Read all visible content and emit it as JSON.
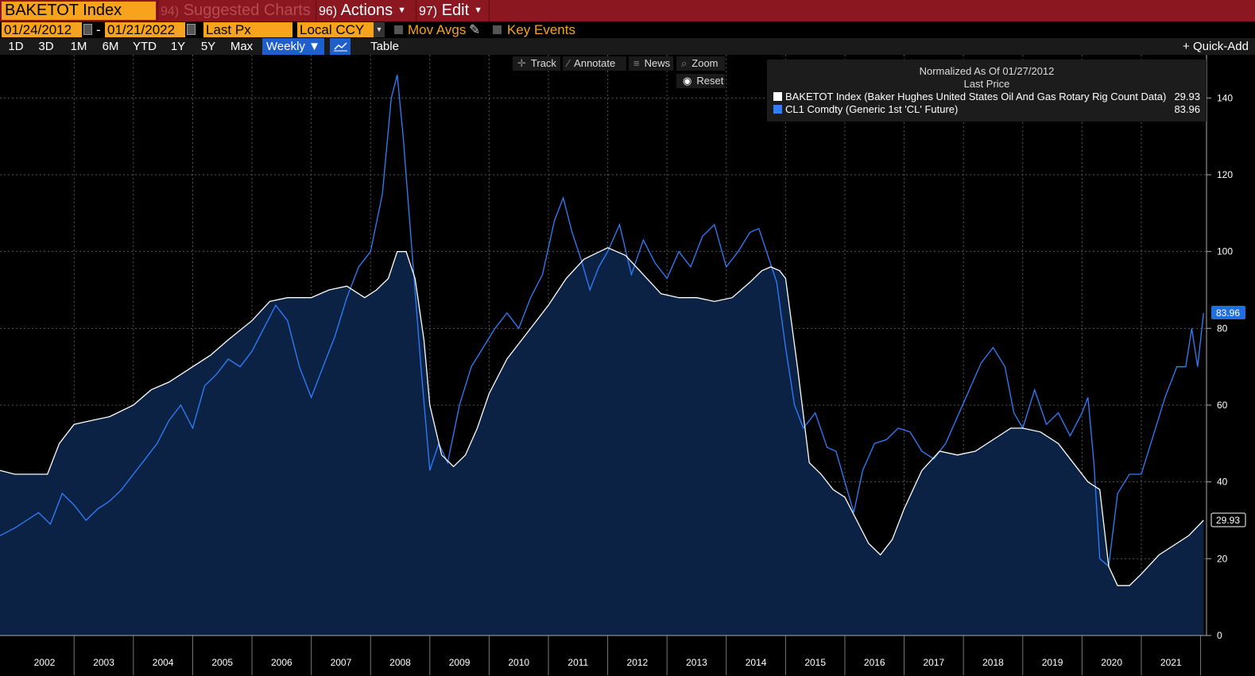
{
  "header": {
    "ticker": "BAKETOT Index",
    "menu": [
      {
        "num": "94)",
        "label": "Suggested Charts"
      },
      {
        "num": "96)",
        "label": "Actions"
      },
      {
        "num": "97)",
        "label": "Edit"
      }
    ]
  },
  "controls": {
    "start_date": "01/24/2012",
    "date_sep": "-",
    "end_date": "01/21/2022",
    "field": "Last Px",
    "currency": "Local CCY",
    "mov_avgs": "Mov Avgs",
    "key_events": "Key Events"
  },
  "ranges": [
    "1D",
    "3D",
    "1M",
    "6M",
    "YTD",
    "1Y",
    "5Y",
    "Max"
  ],
  "period": "Weekly ▼",
  "table_label": "Table",
  "quick_add": "+ Quick-Add",
  "tools": {
    "track": "Track",
    "annotate": "Annotate",
    "news": "News",
    "zoom": "Zoom",
    "reset": "Reset"
  },
  "chart_data": {
    "type": "area",
    "title": "Normalized As Of 01/27/2012",
    "subtitle": "Last Price",
    "x_unit": "year",
    "xlim": [
      2001.75,
      2022.1
    ],
    "ylim": [
      0,
      150
    ],
    "yticks": [
      0,
      20,
      40,
      60,
      80,
      100,
      120,
      140
    ],
    "xtick_labels": [
      "2002",
      "2003",
      "2004",
      "2005",
      "2006",
      "2007",
      "2008",
      "2009",
      "2010",
      "2011",
      "2012",
      "2013",
      "2014",
      "2015",
      "2016",
      "2017",
      "2018",
      "2019",
      "2020",
      "2021"
    ],
    "series": [
      {
        "name": "BAKETOT Index (Baker Hughes United States Oil And Gas Rotary Rig Count Data)",
        "color": "#ffffff",
        "last": "29.93",
        "x": [
          2001.75,
          2002.0,
          2002.3,
          2002.55,
          2002.75,
          2003.0,
          2003.3,
          2003.6,
          2004.0,
          2004.3,
          2004.6,
          2005.0,
          2005.3,
          2005.6,
          2006.0,
          2006.3,
          2006.6,
          2007.0,
          2007.3,
          2007.6,
          2007.9,
          2008.1,
          2008.3,
          2008.45,
          2008.6,
          2008.75,
          2008.9,
          2009.0,
          2009.2,
          2009.4,
          2009.6,
          2009.8,
          2010.0,
          2010.3,
          2010.6,
          2011.0,
          2011.3,
          2011.6,
          2012.0,
          2012.3,
          2012.6,
          2012.9,
          2013.2,
          2013.5,
          2013.8,
          2014.1,
          2014.4,
          2014.6,
          2014.75,
          2014.9,
          2015.0,
          2015.2,
          2015.4,
          2015.6,
          2015.8,
          2016.0,
          2016.2,
          2016.4,
          2016.6,
          2016.8,
          2017.0,
          2017.3,
          2017.6,
          2017.9,
          2018.2,
          2018.5,
          2018.8,
          2019.0,
          2019.3,
          2019.6,
          2019.9,
          2020.1,
          2020.3,
          2020.45,
          2020.6,
          2020.8,
          2021.0,
          2021.3,
          2021.6,
          2021.8,
          2022.05
        ],
        "values": [
          43,
          42,
          42,
          42,
          50,
          55,
          56,
          57,
          60,
          64,
          66,
          70,
          73,
          77,
          82,
          87,
          88,
          88,
          90,
          91,
          88,
          90,
          93,
          100,
          100,
          93,
          77,
          60,
          47,
          44,
          47,
          54,
          63,
          72,
          78,
          86,
          93,
          98,
          101,
          99,
          94,
          89,
          88,
          88,
          87,
          88,
          92,
          95,
          96,
          95,
          93,
          70,
          45,
          42,
          38,
          36,
          30,
          24,
          21,
          25,
          33,
          43,
          48,
          47,
          48,
          51,
          54,
          54,
          53,
          50,
          44,
          40,
          38,
          18,
          13,
          13,
          16,
          21,
          24,
          26,
          30
        ]
      },
      {
        "name": "CL1 Comdty (Generic 1st 'CL' Future)",
        "color": "#2f7fff",
        "last": "83.96",
        "x": [
          2001.75,
          2002.0,
          2002.2,
          2002.4,
          2002.6,
          2002.8,
          2003.0,
          2003.2,
          2003.4,
          2003.6,
          2003.8,
          2004.0,
          2004.2,
          2004.4,
          2004.6,
          2004.8,
          2005.0,
          2005.2,
          2005.4,
          2005.6,
          2005.8,
          2006.0,
          2006.2,
          2006.4,
          2006.6,
          2006.8,
          2007.0,
          2007.2,
          2007.4,
          2007.6,
          2007.8,
          2008.0,
          2008.2,
          2008.35,
          2008.45,
          2008.55,
          2008.7,
          2008.85,
          2009.0,
          2009.15,
          2009.3,
          2009.5,
          2009.7,
          2009.9,
          2010.1,
          2010.3,
          2010.5,
          2010.7,
          2010.9,
          2011.1,
          2011.25,
          2011.4,
          2011.55,
          2011.7,
          2011.85,
          2012.0,
          2012.2,
          2012.4,
          2012.6,
          2012.8,
          2013.0,
          2013.2,
          2013.4,
          2013.6,
          2013.8,
          2014.0,
          2014.2,
          2014.4,
          2014.55,
          2014.7,
          2014.85,
          2015.0,
          2015.15,
          2015.3,
          2015.5,
          2015.7,
          2015.85,
          2016.0,
          2016.15,
          2016.3,
          2016.5,
          2016.7,
          2016.9,
          2017.1,
          2017.3,
          2017.5,
          2017.7,
          2017.9,
          2018.1,
          2018.3,
          2018.5,
          2018.7,
          2018.85,
          2019.0,
          2019.2,
          2019.4,
          2019.6,
          2019.8,
          2020.0,
          2020.1,
          2020.2,
          2020.3,
          2020.45,
          2020.6,
          2020.8,
          2021.0,
          2021.2,
          2021.4,
          2021.6,
          2021.75,
          2021.85,
          2021.95,
          2022.05
        ],
        "values": [
          26,
          28,
          30,
          32,
          29,
          37,
          34,
          30,
          33,
          35,
          38,
          42,
          46,
          50,
          56,
          60,
          54,
          65,
          68,
          72,
          70,
          74,
          80,
          86,
          82,
          70,
          62,
          70,
          78,
          88,
          96,
          100,
          115,
          140,
          146,
          130,
          100,
          70,
          43,
          50,
          45,
          60,
          70,
          75,
          80,
          84,
          80,
          88,
          94,
          108,
          114,
          105,
          98,
          90,
          96,
          100,
          107,
          94,
          103,
          97,
          93,
          100,
          96,
          104,
          107,
          96,
          100,
          105,
          106,
          99,
          92,
          75,
          60,
          54,
          58,
          49,
          48,
          40,
          32,
          43,
          50,
          51,
          54,
          53,
          48,
          46,
          50,
          57,
          64,
          71,
          75,
          70,
          58,
          54,
          64,
          55,
          58,
          52,
          58,
          62,
          45,
          20,
          18,
          37,
          42,
          42,
          52,
          62,
          70,
          70,
          80,
          70,
          84
        ]
      }
    ]
  }
}
